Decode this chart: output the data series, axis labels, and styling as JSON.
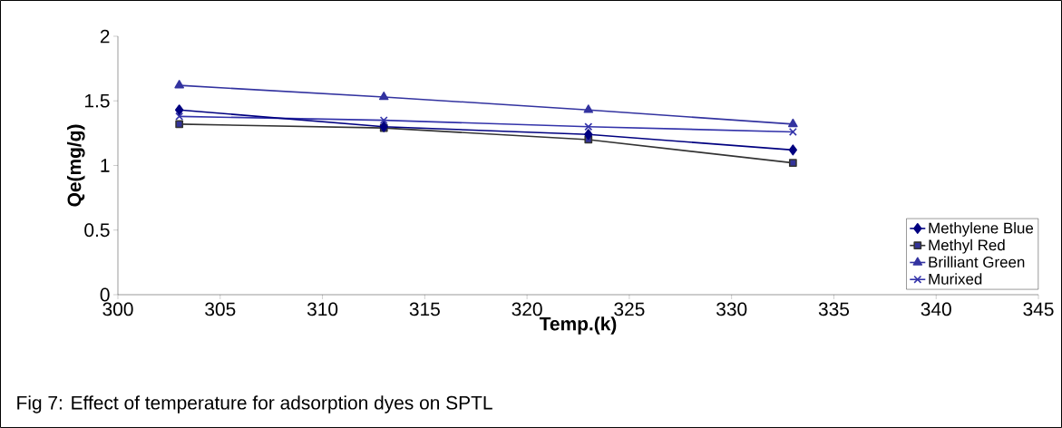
{
  "chart_data": {
    "type": "line",
    "xlabel": "Temp.(k)",
    "ylabel": "Qe(mg/g)",
    "x": [
      303,
      313,
      323,
      333
    ],
    "series": [
      {
        "name": "Methylene Blue",
        "color": "#000080",
        "marker": "diamond",
        "values": [
          1.43,
          1.3,
          1.24,
          1.12
        ]
      },
      {
        "name": "Methyl Red",
        "color": "#333399",
        "marker": "square",
        "values": [
          1.32,
          1.29,
          1.2,
          1.02
        ]
      },
      {
        "name": "Brilliant Green",
        "color": "#3333a0",
        "marker": "triangle",
        "values": [
          1.62,
          1.53,
          1.43,
          1.32
        ]
      },
      {
        "name": "Murixed",
        "color": "#3333aa",
        "marker": "cross",
        "values": [
          1.38,
          1.35,
          1.3,
          1.26
        ]
      }
    ],
    "xlim": [
      300,
      345
    ],
    "xticks": [
      300,
      305,
      310,
      315,
      320,
      325,
      330,
      335,
      340,
      345
    ],
    "ylim": [
      0,
      2
    ],
    "yticks": [
      0,
      0.5,
      1,
      1.5,
      2
    ],
    "legend": "bottom right",
    "grid": false,
    "annotations": [
      "Fig 7: Effect of temperature for adsorption dyes on SPTL"
    ]
  }
}
